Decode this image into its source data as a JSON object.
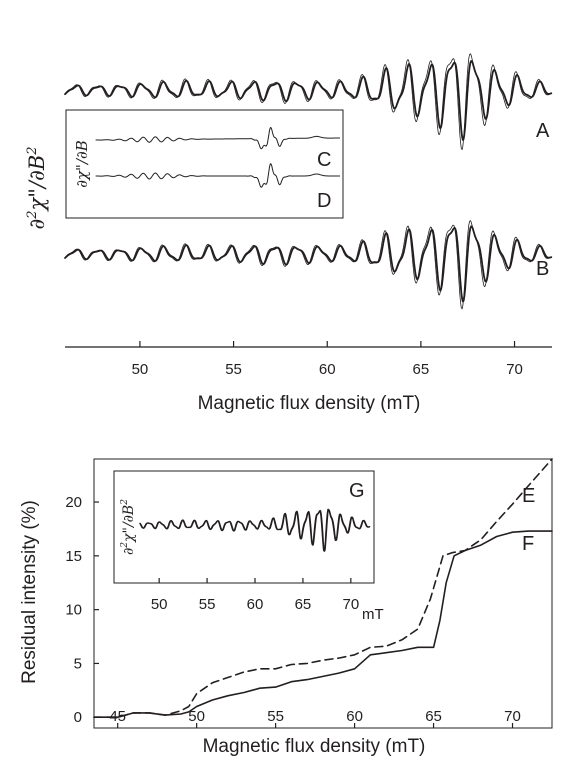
{
  "chart_data": [
    {
      "type": "line",
      "panel": "top",
      "xlabel": "Magnetic flux density (mT)",
      "ylabel": "∂²χ\"/∂B²",
      "xlim": [
        46,
        72
      ],
      "xticks": [
        50,
        55,
        60,
        65,
        70
      ],
      "series": [
        {
          "name": "A",
          "style": "thick-and-thin overlay",
          "description_role": "simulated vs experimental"
        },
        {
          "name": "B",
          "style": "thick-and-thin overlay"
        }
      ],
      "inset": {
        "ylabel": "∂χ\"/∂B",
        "series": [
          {
            "name": "C"
          },
          {
            "name": "D"
          }
        ]
      }
    },
    {
      "type": "line",
      "panel": "bottom",
      "xlabel": "Magnetic flux density (mT)",
      "ylabel": "Residual intensity (%)",
      "xlim": [
        43.5,
        72.5
      ],
      "ylim": [
        -1,
        24
      ],
      "xticks": [
        45,
        50,
        55,
        60,
        65,
        70
      ],
      "yticks": [
        0,
        5,
        10,
        15,
        20
      ],
      "series": [
        {
          "name": "E",
          "style": "dashed",
          "x": [
            43.5,
            45,
            46,
            47,
            48,
            49,
            49.5,
            50,
            51,
            52,
            53,
            54,
            55,
            56,
            57,
            58,
            59,
            60,
            61,
            62,
            63,
            64,
            64.8,
            65.2,
            65.6,
            66.2,
            67,
            68,
            69,
            70,
            71,
            72.5
          ],
          "y": [
            0,
            0,
            0.4,
            0.4,
            0.2,
            0.6,
            1.0,
            2.2,
            3.2,
            3.7,
            4.2,
            4.5,
            4.5,
            4.9,
            5.0,
            5.3,
            5.5,
            5.8,
            6.5,
            6.6,
            7.2,
            8.2,
            11.0,
            13.0,
            15.0,
            15.3,
            15.5,
            16.5,
            18.2,
            19.8,
            21.5,
            24.0
          ]
        },
        {
          "name": "F",
          "style": "solid",
          "x": [
            43.5,
            45,
            46,
            47,
            48,
            49,
            49.5,
            50,
            51,
            52,
            53,
            54,
            55,
            56,
            57,
            58,
            59,
            60,
            61,
            62,
            63,
            64,
            65,
            65.4,
            65.8,
            66.3,
            67,
            68,
            69,
            70,
            71,
            72.5
          ],
          "y": [
            0,
            0,
            0.4,
            0.4,
            0.2,
            0.3,
            0.5,
            1.0,
            1.6,
            2.0,
            2.3,
            2.7,
            2.8,
            3.3,
            3.5,
            3.8,
            4.1,
            4.5,
            5.8,
            6.0,
            6.2,
            6.5,
            6.5,
            9.0,
            12.5,
            15.0,
            15.5,
            16.0,
            16.8,
            17.2,
            17.3,
            17.3
          ]
        }
      ],
      "inset": {
        "label": "G",
        "ylabel": "∂²χ\"/∂B²",
        "xlim": [
          48,
          72
        ],
        "xticks": [
          50,
          55,
          60,
          65,
          70
        ],
        "xunit": "mT"
      }
    }
  ]
}
